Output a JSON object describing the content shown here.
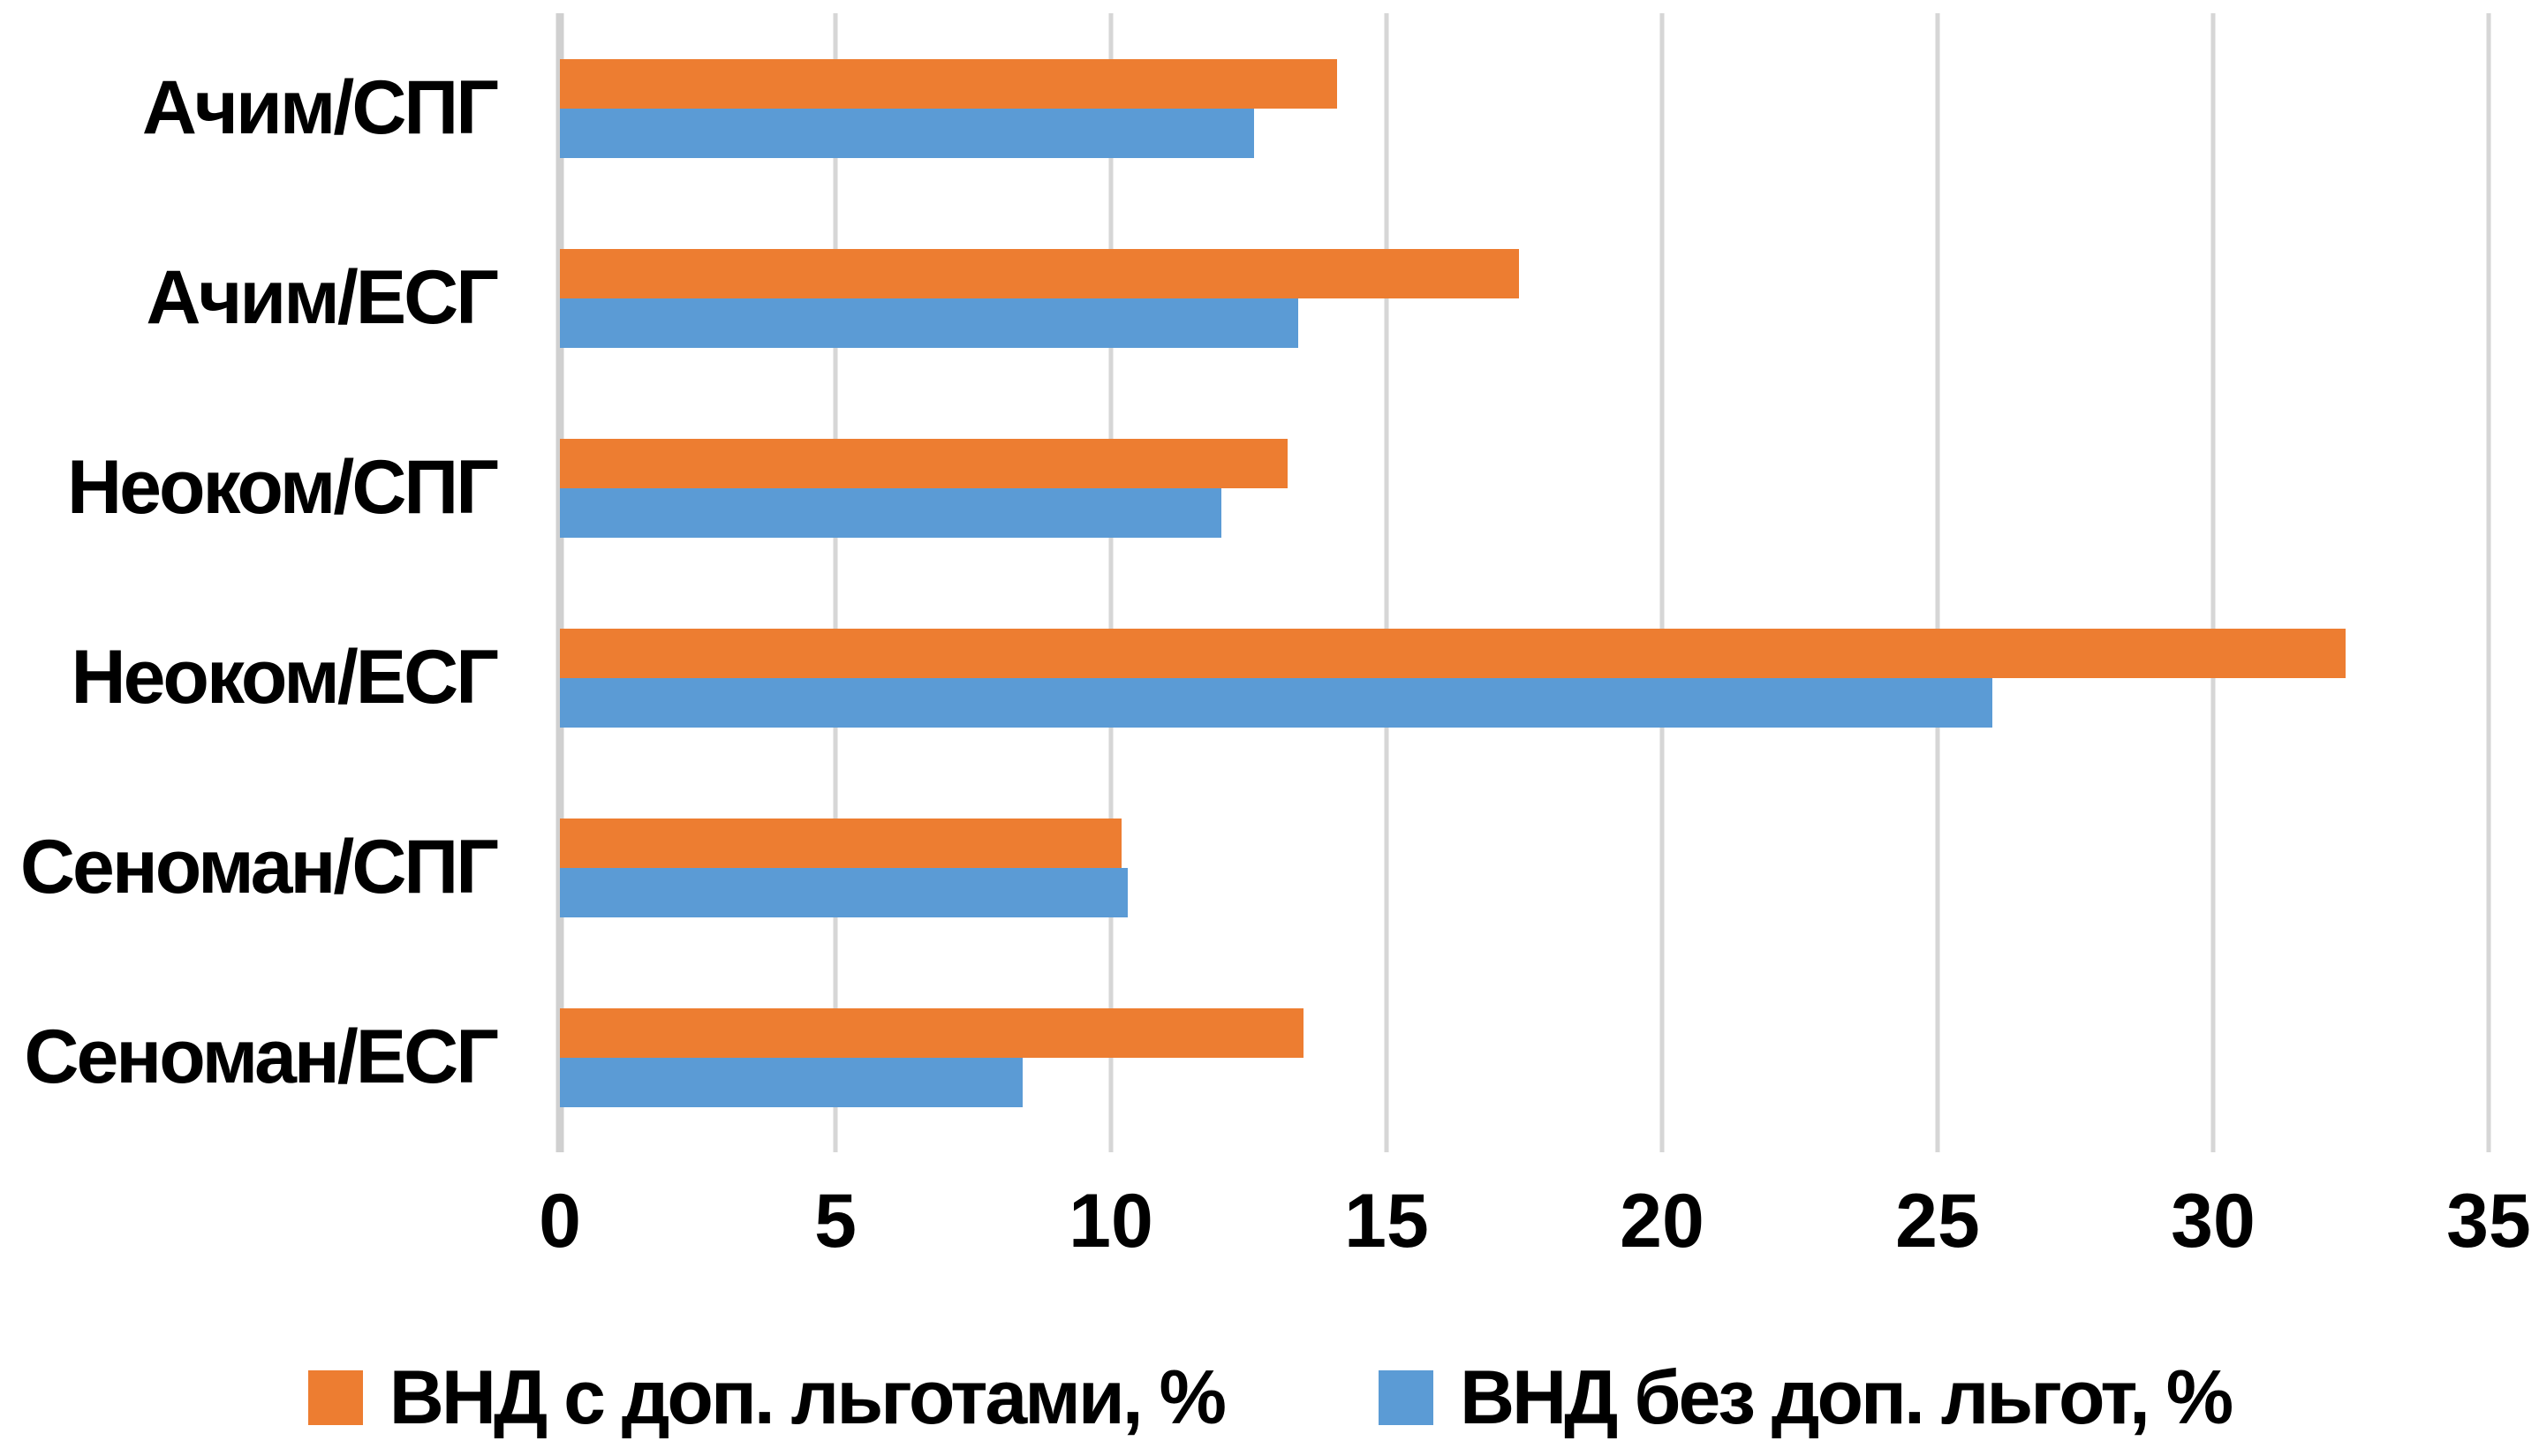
{
  "chart_data": {
    "type": "bar",
    "orientation": "horizontal",
    "title": "",
    "xlabel": "",
    "ylabel": "",
    "categories": [
      "Ачим/СПГ",
      "Ачим/ЕСГ",
      "Неоком/СПГ",
      "Неоком/ЕСГ",
      "Сеноман/СПГ",
      "Сеноман/ЕСГ"
    ],
    "series": [
      {
        "name": "ВНД с доп. льготами, %",
        "color": "#ED7D31",
        "values": [
          14.1,
          17.4,
          13.2,
          32.4,
          10.2,
          13.5
        ]
      },
      {
        "name": "ВНД без доп. льгот, %",
        "color": "#5B9BD5",
        "values": [
          12.6,
          13.4,
          12.0,
          26.0,
          10.3,
          8.4
        ]
      }
    ],
    "x_ticks": [
      0,
      5,
      10,
      15,
      20,
      25,
      30,
      35
    ],
    "xlim": [
      0,
      35
    ],
    "grid": true,
    "legend_position": "bottom"
  },
  "colors": {
    "gridline": "#D6D6D6",
    "axis_line": "#D0D0D0",
    "text": "#000000",
    "background": "#FFFFFF"
  }
}
